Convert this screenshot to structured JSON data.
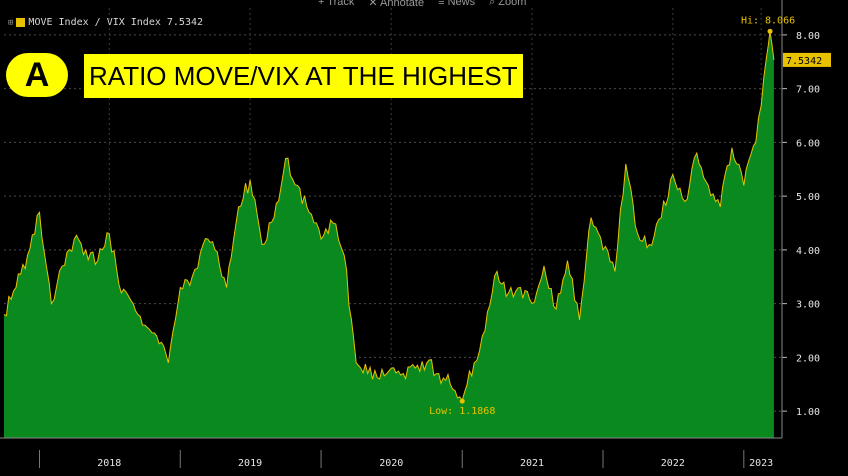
{
  "toolbar": {
    "track": "+ Track",
    "annotate": "✕ Annotate",
    "news": "≡ News",
    "zoom": "⌕ Zoom"
  },
  "legend": {
    "expand_symbol": "⊞",
    "label": "MOVE Index / VIX Index 7.5342"
  },
  "annotation": {
    "badge": "A",
    "headline": "RATIO MOVE/VIX AT THE HIGHEST"
  },
  "colors": {
    "fill": "#0a8a1e",
    "line": "#e8c200",
    "background": "#000000",
    "highlight": "#ffff00"
  },
  "chart_data": {
    "type": "area",
    "series": [
      {
        "name": "MOVE Index / VIX Index",
        "points": [
          [
            "2017-10-01",
            2.8
          ],
          [
            "2017-11-01",
            3.3
          ],
          [
            "2017-12-01",
            3.9
          ],
          [
            "2018-01-01",
            4.7
          ],
          [
            "2018-02-01",
            3.0
          ],
          [
            "2018-03-01",
            3.7
          ],
          [
            "2018-04-01",
            4.2
          ],
          [
            "2018-05-01",
            4.0
          ],
          [
            "2018-06-01",
            3.8
          ],
          [
            "2018-07-01",
            4.3
          ],
          [
            "2018-08-01",
            3.2
          ],
          [
            "2018-09-01",
            3.0
          ],
          [
            "2018-10-01",
            2.6
          ],
          [
            "2018-11-01",
            2.4
          ],
          [
            "2018-12-01",
            1.9
          ],
          [
            "2019-01-01",
            3.3
          ],
          [
            "2019-02-01",
            3.5
          ],
          [
            "2019-03-01",
            4.1
          ],
          [
            "2019-04-01",
            4.0
          ],
          [
            "2019-05-01",
            3.3
          ],
          [
            "2019-06-01",
            4.8
          ],
          [
            "2019-07-01",
            5.3
          ],
          [
            "2019-08-01",
            4.1
          ],
          [
            "2019-09-01",
            4.6
          ],
          [
            "2019-10-01",
            5.7
          ],
          [
            "2019-11-01",
            5.2
          ],
          [
            "2019-12-01",
            4.7
          ],
          [
            "2020-01-01",
            4.2
          ],
          [
            "2020-02-01",
            4.5
          ],
          [
            "2020-03-01",
            3.9
          ],
          [
            "2020-04-01",
            1.9
          ],
          [
            "2020-05-01",
            1.7
          ],
          [
            "2020-06-01",
            1.6
          ],
          [
            "2020-07-01",
            1.8
          ],
          [
            "2020-08-01",
            1.7
          ],
          [
            "2020-09-01",
            1.8
          ],
          [
            "2020-10-01",
            1.9
          ],
          [
            "2020-11-01",
            1.7
          ],
          [
            "2020-12-01",
            1.5
          ],
          [
            "2021-01-01",
            1.2
          ],
          [
            "2021-02-01",
            1.9
          ],
          [
            "2021-03-01",
            2.5
          ],
          [
            "2021-04-01",
            3.6
          ],
          [
            "2021-05-01",
            3.2
          ],
          [
            "2021-06-01",
            3.3
          ],
          [
            "2021-07-01",
            3.0
          ],
          [
            "2021-08-01",
            3.7
          ],
          [
            "2021-09-01",
            2.9
          ],
          [
            "2021-10-01",
            3.8
          ],
          [
            "2021-11-01",
            2.7
          ],
          [
            "2021-12-01",
            4.6
          ],
          [
            "2022-01-01",
            4.0
          ],
          [
            "2022-02-01",
            3.6
          ],
          [
            "2022-03-01",
            5.6
          ],
          [
            "2022-04-01",
            4.3
          ],
          [
            "2022-05-01",
            4.1
          ],
          [
            "2022-06-01",
            4.6
          ],
          [
            "2022-07-01",
            5.4
          ],
          [
            "2022-08-01",
            4.9
          ],
          [
            "2022-09-01",
            5.8
          ],
          [
            "2022-10-01",
            5.2
          ],
          [
            "2022-11-01",
            4.8
          ],
          [
            "2022-12-01",
            5.9
          ],
          [
            "2023-01-01",
            5.2
          ],
          [
            "2023-02-01",
            6.0
          ],
          [
            "2023-03-01",
            7.6
          ],
          [
            "2023-03-10",
            8.066
          ],
          [
            "2023-03-20",
            7.5342
          ]
        ]
      }
    ],
    "x_ticks": [
      "2018",
      "2019",
      "2020",
      "2021",
      "2022",
      "2023"
    ],
    "x_tick_dates": [
      "2018-07-01",
      "2019-07-01",
      "2020-07-01",
      "2021-07-01",
      "2022-07-01",
      "2023-02-15"
    ],
    "x_range": [
      "2017-10-01",
      "2023-04-10"
    ],
    "y_ticks": [
      "8.00",
      "7.00",
      "6.00",
      "5.00",
      "4.00",
      "3.00",
      "2.00",
      "1.00"
    ],
    "ylim": [
      0.5,
      8.5
    ],
    "grid": true,
    "last_value": "7.5342",
    "annotations": [
      {
        "label": "Hi: 8.066",
        "x": "2023-03-10",
        "y": 8.066
      },
      {
        "label": "Low: 1.1868",
        "x": "2021-01-01",
        "y": 1.1868
      }
    ]
  }
}
